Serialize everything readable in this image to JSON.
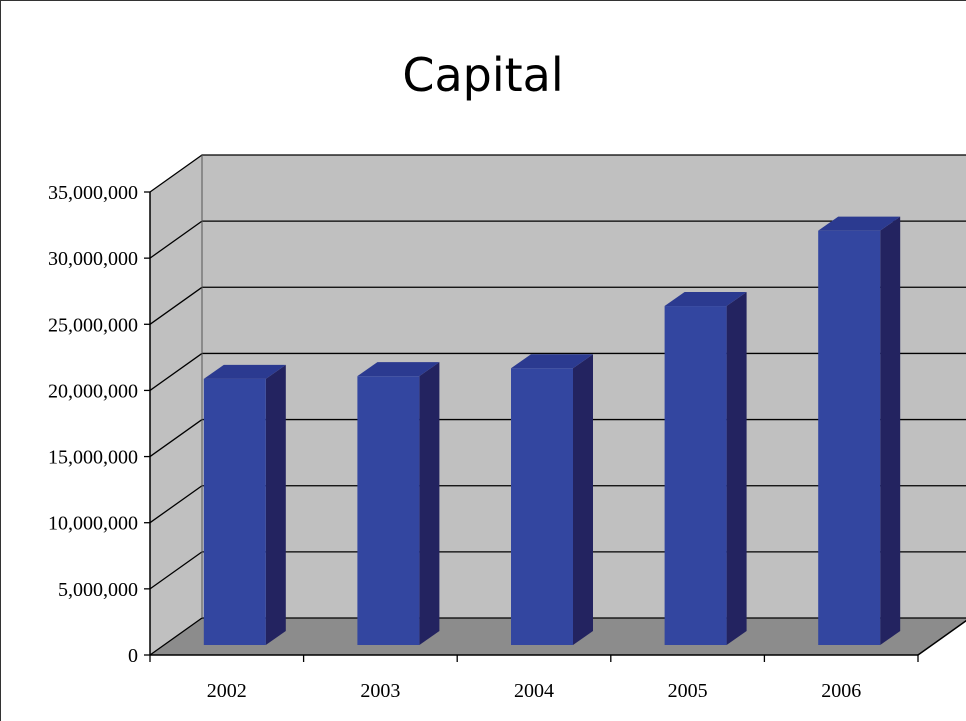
{
  "chart_data": {
    "type": "bar",
    "title": "Capital",
    "xlabel": "",
    "ylabel": "",
    "categories": [
      "2002",
      "2003",
      "2004",
      "2005",
      "2006"
    ],
    "values": [
      20500000,
      20700000,
      21300000,
      26000000,
      31700000
    ],
    "ylim": [
      0,
      35000000
    ],
    "yticks": [
      0,
      5000000,
      10000000,
      15000000,
      20000000,
      25000000,
      30000000,
      35000000
    ],
    "ytick_labels": [
      "0",
      "5,000,000",
      "10,000,000",
      "15,000,000",
      "20,000,000",
      "25,000,000",
      "30,000,000",
      "35,000,000"
    ],
    "grid": true,
    "style": "3d-column",
    "colors": {
      "bar_front": "#3346A0",
      "bar_side": "#232360",
      "bar_top": "#2B3A90",
      "back_wall": "#C0C0C0",
      "floor": "#8C8C8C"
    }
  }
}
